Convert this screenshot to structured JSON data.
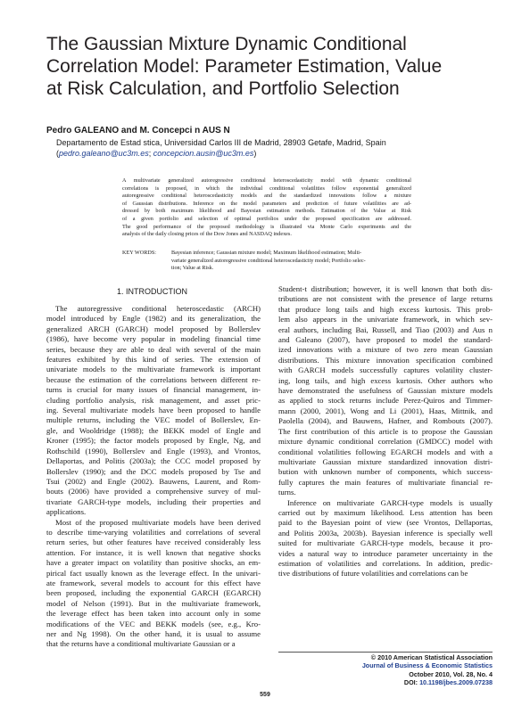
{
  "title": [
    "The Gaussian Mixture Dynamic Conditional",
    "Correlation Model: Parameter Estimation, Value",
    "at Risk Calculation, and Portfolio Selection"
  ],
  "authors": "Pedro GALEANO and M. Concepci n AUS N",
  "affiliation": "Departamento de Estad stica, Universidad Carlos III de Madrid, 28903 Getafe, Madrid, Spain",
  "emails": {
    "open": "(",
    "email1": "pedro.galeano@uc3m.es",
    "sep": "; ",
    "email2": "concepcion.ausin@uc3m.es",
    "close": ")"
  },
  "abstract": [
    "A multivariate generalized autoregressive conditional heteroscedasticity model with dynamic conditional",
    "correlations is proposed, in which the individual conditional volatilities follow exponential generalized",
    "autoregressive conditional heteroscedasticity models and the standardized innovations follow a mixture",
    "of Gaussian distributions. Inference on the model parameters and prediction of future volatilities are ad-",
    "dressed by both maximum likelihood and Bayesian estimation methods. Estimation of the Value at Risk",
    "of a given portfolio and selection of optimal portfolios under the proposed specification are addressed.",
    "The good performance of the proposed methodology is illustrated via Monte Carlo experiments and the",
    "analysis of the daily closing prices of the Dow Jones and NASDAQ indexes."
  ],
  "keywords_label": "KEY WORDS:",
  "keywords": [
    "Bayesian inference; Gaussian mixture model; Maximum likelihood estimation; Multi-",
    "variate generalized autoregressive conditional heteroscedasticity model; Portfolio selec-",
    "tion; Value at Risk."
  ],
  "section_heading": "1.   INTRODUCTION",
  "left_column": [
    "The autoregressive conditional heteroscedastic (ARCH)",
    "model introduced by Engle (1982) and its generalization, the",
    "generalized ARCH (GARCH) model proposed by Bollerslev",
    "(1986), have become very popular in modeling financial time",
    "series, because they are able to deal with several of the main",
    "features exhibited by this kind of series. The extension of",
    "univariate models to the multivariate framework is important",
    "because the estimation of the correlations between different re-",
    "turns is crucial for many issues of financial management, in-",
    "cluding portfolio analysis, risk management, and asset pric-",
    "ing. Several multivariate models have been proposed to handle",
    "multiple returns, including the VEC model of Bollerslev, En-",
    "gle, and Wooldridge (1988); the BEKK model of Engle and",
    "Kroner (1995); the factor models proposed by Engle, Ng, and",
    "Rothschild (1990), Bollerslev and Engle (1993), and Vrontos,",
    "Dellaportas, and Politis (2003a); the CCC model proposed by",
    "Bollerslev (1990); and the DCC models proposed by Tse and",
    "Tsui (2002) and Engle (2002). Bauwens, Laurent, and Rom-",
    "bouts (2006) have provided a comprehensive survey of mul-",
    "tivariate GARCH-type models, including their properties and",
    "applications.",
    "Most of the proposed multivariate models have been derived",
    "to describe time-varying volatilities and correlations of several",
    "return series, but other features have received considerably less",
    "attention. For instance, it is well known that negative shocks",
    "have a greater impact on volatility than positive shocks, an em-",
    "pirical fact usually known as the leverage effect. In the univari-",
    "ate framework, several models to account for this effect have",
    "been proposed, including the exponential GARCH (EGARCH)",
    "model of Nelson (1991). But in the multivariate framework,",
    "the leverage effect has been taken into account only in some",
    "modifications of the VEC and BEKK models (see, e.g., Kro-",
    "ner and Ng 1998). On the other hand, it is usual to assume",
    "that the returns have a conditional multivariate Gaussian or a"
  ],
  "right_column": [
    "Student-t distribution; however, it is well known that both dis-",
    "tributions are not consistent with the presence of large returns",
    "that produce long tails and high excess kurtosis. This prob-",
    "lem also appears in the univariate framework, in which sev-",
    "eral authors, including Bai, Russell, and Tiao (2003) and Aus n",
    "and Galeano (2007), have proposed to model the standard-",
    "ized innovations with a mixture of two zero mean Gaussian",
    "distributions. This mixture innovation specification combined",
    "with GARCH models successfully captures volatility cluster-",
    "ing, long tails, and high excess kurtosis. Other authors who",
    "have demonstrated the usefulness of Gaussian mixture models",
    "as applied to stock returns include Perez-Quiros and Timmer-",
    "mann (2000, 2001), Wong and Li (2001), Haas, Mittnik, and",
    "Paolella (2004), and Bauwens, Hafner, and Rombouts (2007).",
    "The first contribution of this article is to propose the Gaussian",
    "mixture dynamic conditional correlation (GMDCC) model with",
    "conditional volatilities following EGARCH models and with a",
    "multivariate Gaussian mixture standardized innovation distri-",
    "bution with unknown number of components, which success-",
    "fully captures the main features of multivariate financial re-",
    "turns.",
    "Inference on multivariate GARCH-type models is usually",
    "carried out by maximum likelihood. Less attention has been",
    "paid to the Bayesian point of view (see Vrontos, Dellaportas,",
    "and Politis 2003a, 2003b). Bayesian inference is specially well",
    "suited for multivariate GARCH-type models, because it pro-",
    "vides a natural way to introduce parameter uncertainty in the",
    "estimation of volatilities and correlations. In addition, predic-",
    "tive distributions of future volatilities and correlations can be"
  ],
  "footer": {
    "copyright": "© 2010 American Statistical Association",
    "journal": "Journal of Business & Economic Statistics",
    "issue": "October 2010, Vol. 28, No. 4",
    "doi_label": "DOI: ",
    "doi": "10.1198/jbes.2009.07238"
  },
  "page_number": "559"
}
